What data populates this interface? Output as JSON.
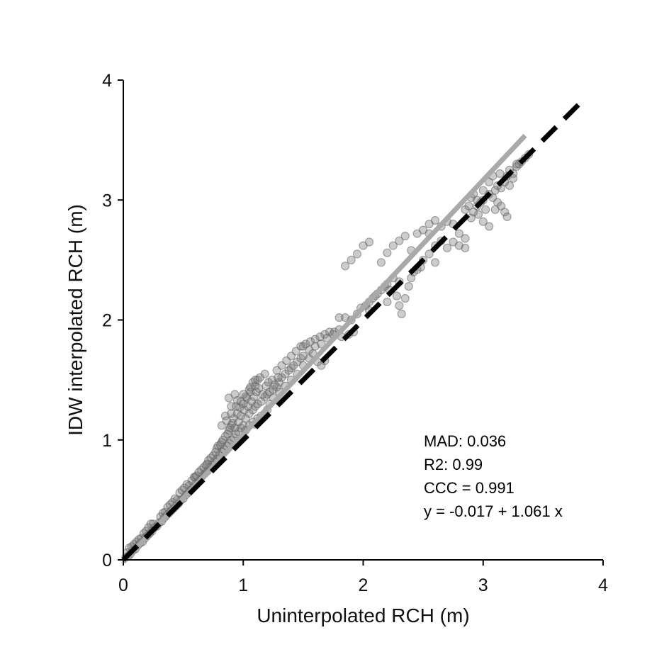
{
  "chart_data": {
    "type": "scatter",
    "title": "",
    "xlabel": "Uninterpolated RCH (m)",
    "ylabel": "IDW interpolated RCH (m)",
    "xlim": [
      0,
      4
    ],
    "ylim": [
      0,
      4
    ],
    "x_ticks": [
      0,
      1,
      2,
      3,
      4
    ],
    "y_ticks": [
      0,
      1,
      2,
      3,
      4
    ],
    "x_tick_labels": [
      "0",
      "1",
      "2",
      "3",
      "4"
    ],
    "y_tick_labels": [
      "0",
      "1",
      "2",
      "3",
      "4"
    ],
    "grid": false,
    "legend": "none",
    "colors": {
      "points_fill": "#7a7a7a",
      "points_stroke": "#5a5a5a",
      "fit_line": "#a9a9a9",
      "one_to_one_line": "#000000",
      "axis": "#000000"
    },
    "annotations": [
      "MAD: 0.036",
      "R2: 0.99",
      "CCC =  0.991",
      "y =  -0.017 + 1.061 x"
    ],
    "fit_line": {
      "intercept": -0.017,
      "slope": 1.061,
      "x_range": [
        0,
        3.35
      ]
    },
    "one_to_one_line": {
      "x_range": [
        0,
        3.85
      ]
    },
    "series": [
      {
        "points": [
          [
            0.02,
            0.02
          ],
          [
            0.04,
            0.03
          ],
          [
            0.06,
            0.05
          ],
          [
            0.08,
            0.08
          ],
          [
            0.1,
            0.09
          ],
          [
            0.12,
            0.12
          ],
          [
            0.14,
            0.14
          ],
          [
            0.16,
            0.15
          ],
          [
            0.18,
            0.18
          ],
          [
            0.2,
            0.2
          ],
          [
            0.22,
            0.22
          ],
          [
            0.24,
            0.24
          ],
          [
            0.26,
            0.27
          ],
          [
            0.28,
            0.28
          ],
          [
            0.3,
            0.31
          ],
          [
            0.32,
            0.32
          ],
          [
            0.34,
            0.35
          ],
          [
            0.36,
            0.37
          ],
          [
            0.38,
            0.39
          ],
          [
            0.4,
            0.41
          ],
          [
            0.42,
            0.43
          ],
          [
            0.44,
            0.45
          ],
          [
            0.46,
            0.47
          ],
          [
            0.48,
            0.5
          ],
          [
            0.5,
            0.51
          ],
          [
            0.52,
            0.54
          ],
          [
            0.54,
            0.56
          ],
          [
            0.56,
            0.58
          ],
          [
            0.58,
            0.6
          ],
          [
            0.6,
            0.63
          ],
          [
            0.62,
            0.65
          ],
          [
            0.64,
            0.67
          ],
          [
            0.66,
            0.7
          ],
          [
            0.68,
            0.72
          ],
          [
            0.7,
            0.74
          ],
          [
            0.72,
            0.77
          ],
          [
            0.74,
            0.79
          ],
          [
            0.76,
            0.82
          ],
          [
            0.78,
            0.84
          ],
          [
            0.8,
            0.87
          ],
          [
            0.82,
            0.9
          ],
          [
            0.84,
            0.92
          ],
          [
            0.86,
            0.95
          ],
          [
            0.88,
            0.97
          ],
          [
            0.9,
            1.0
          ],
          [
            0.92,
            1.02
          ],
          [
            0.94,
            1.05
          ],
          [
            0.96,
            1.07
          ],
          [
            0.98,
            1.1
          ],
          [
            1.0,
            1.12
          ],
          [
            0.15,
            0.18
          ],
          [
            0.25,
            0.3
          ],
          [
            0.35,
            0.4
          ],
          [
            0.45,
            0.5
          ],
          [
            0.55,
            0.62
          ],
          [
            0.6,
            0.69
          ],
          [
            0.65,
            0.75
          ],
          [
            0.7,
            0.8
          ],
          [
            0.75,
            0.87
          ],
          [
            0.78,
            0.93
          ],
          [
            0.82,
            0.98
          ],
          [
            0.85,
            1.03
          ],
          [
            0.88,
            1.08
          ],
          [
            0.9,
            1.12
          ],
          [
            0.92,
            1.18
          ],
          [
            0.95,
            1.22
          ],
          [
            0.97,
            1.27
          ],
          [
            1.0,
            1.3
          ],
          [
            1.03,
            1.35
          ],
          [
            1.06,
            1.4
          ],
          [
            0.85,
            1.2
          ],
          [
            0.9,
            1.28
          ],
          [
            0.95,
            1.33
          ],
          [
            1.0,
            1.38
          ],
          [
            1.05,
            1.42
          ],
          [
            1.1,
            1.45
          ],
          [
            0.88,
            1.35
          ],
          [
            0.93,
            1.38
          ],
          [
            1.08,
            1.48
          ],
          [
            1.12,
            1.5
          ],
          [
            1.02,
            1.18
          ],
          [
            1.05,
            1.22
          ],
          [
            1.08,
            1.25
          ],
          [
            1.1,
            1.28
          ],
          [
            1.12,
            1.3
          ],
          [
            1.15,
            1.32
          ],
          [
            1.18,
            1.36
          ],
          [
            1.2,
            1.38
          ],
          [
            1.22,
            1.4
          ],
          [
            1.25,
            1.42
          ],
          [
            1.02,
            1.08
          ],
          [
            1.05,
            1.12
          ],
          [
            1.08,
            1.15
          ],
          [
            1.1,
            1.13
          ],
          [
            1.12,
            1.18
          ],
          [
            1.15,
            1.2
          ],
          [
            1.18,
            1.22
          ],
          [
            1.2,
            1.25
          ],
          [
            1.22,
            1.3
          ],
          [
            1.25,
            1.35
          ],
          [
            1.28,
            1.44
          ],
          [
            1.3,
            1.48
          ],
          [
            1.32,
            1.52
          ],
          [
            1.35,
            1.55
          ],
          [
            1.38,
            1.58
          ],
          [
            1.4,
            1.6
          ],
          [
            1.42,
            1.62
          ],
          [
            1.45,
            1.65
          ],
          [
            1.48,
            1.68
          ],
          [
            1.5,
            1.7
          ],
          [
            1.28,
            1.58
          ],
          [
            1.32,
            1.62
          ],
          [
            1.36,
            1.66
          ],
          [
            1.4,
            1.7
          ],
          [
            1.44,
            1.74
          ],
          [
            1.48,
            1.78
          ],
          [
            1.52,
            1.8
          ],
          [
            1.56,
            1.82
          ],
          [
            1.6,
            1.84
          ],
          [
            1.64,
            1.86
          ],
          [
            1.68,
            1.88
          ],
          [
            1.72,
            1.9
          ],
          [
            1.76,
            1.9
          ],
          [
            1.8,
            1.92
          ],
          [
            1.55,
            1.75
          ],
          [
            1.6,
            1.78
          ],
          [
            1.65,
            1.8
          ],
          [
            1.7,
            1.85
          ],
          [
            1.75,
            1.88
          ],
          [
            1.62,
            1.65
          ],
          [
            1.3,
            1.4
          ],
          [
            1.35,
            1.45
          ],
          [
            1.4,
            1.5
          ],
          [
            1.45,
            1.55
          ],
          [
            1.5,
            1.62
          ],
          [
            1.55,
            1.68
          ],
          [
            1.65,
            1.62
          ],
          [
            1.68,
            1.66
          ],
          [
            1.5,
            1.78
          ],
          [
            1.58,
            1.72
          ],
          [
            1.8,
            2.02
          ],
          [
            1.85,
            2.02
          ],
          [
            1.88,
            1.88
          ],
          [
            1.92,
            1.9
          ],
          [
            1.95,
            2.05
          ],
          [
            1.98,
            2.1
          ],
          [
            2.02,
            2.12
          ],
          [
            2.05,
            2.15
          ],
          [
            1.9,
            2.0
          ],
          [
            1.82,
            1.86
          ],
          [
            2.08,
            2.18
          ],
          [
            2.1,
            2.2
          ],
          [
            2.12,
            2.22
          ],
          [
            2.15,
            2.25
          ],
          [
            2.18,
            2.28
          ],
          [
            2.2,
            2.3
          ],
          [
            2.22,
            2.25
          ],
          [
            2.25,
            2.35
          ],
          [
            2.28,
            2.2
          ],
          [
            2.05,
            2.08
          ],
          [
            2.3,
            2.12
          ],
          [
            2.32,
            2.05
          ],
          [
            2.35,
            2.18
          ],
          [
            2.38,
            2.28
          ],
          [
            2.4,
            2.35
          ],
          [
            2.42,
            2.4
          ],
          [
            2.45,
            2.42
          ],
          [
            2.48,
            2.44
          ],
          [
            2.3,
            2.32
          ],
          [
            2.2,
            2.15
          ],
          [
            1.85,
            2.45
          ],
          [
            1.9,
            2.5
          ],
          [
            1.95,
            2.55
          ],
          [
            2.0,
            2.62
          ],
          [
            2.05,
            2.65
          ],
          [
            2.15,
            2.48
          ],
          [
            2.2,
            2.56
          ],
          [
            2.25,
            2.62
          ],
          [
            2.3,
            2.66
          ],
          [
            2.35,
            2.7
          ],
          [
            2.4,
            2.58
          ],
          [
            2.45,
            2.72
          ],
          [
            2.5,
            2.75
          ],
          [
            2.55,
            2.8
          ],
          [
            2.6,
            2.83
          ],
          [
            2.65,
            2.78
          ],
          [
            2.7,
            2.82
          ],
          [
            2.75,
            2.8
          ],
          [
            2.8,
            2.72
          ],
          [
            2.85,
            2.68
          ],
          [
            2.55,
            2.72
          ],
          [
            2.6,
            2.62
          ],
          [
            2.65,
            2.66
          ],
          [
            2.7,
            2.6
          ],
          [
            2.75,
            2.65
          ],
          [
            2.8,
            2.62
          ],
          [
            2.85,
            2.6
          ],
          [
            2.5,
            2.5
          ],
          [
            2.55,
            2.55
          ],
          [
            2.6,
            2.48
          ],
          [
            2.9,
            2.85
          ],
          [
            2.92,
            2.9
          ],
          [
            2.95,
            2.95
          ],
          [
            2.98,
            2.98
          ],
          [
            3.0,
            3.0
          ],
          [
            3.02,
            2.92
          ],
          [
            3.05,
            3.05
          ],
          [
            3.08,
            3.02
          ],
          [
            3.1,
            2.92
          ],
          [
            3.12,
            2.98
          ],
          [
            3.15,
            3.1
          ],
          [
            3.18,
            3.15
          ],
          [
            3.2,
            3.2
          ],
          [
            3.22,
            3.25
          ],
          [
            3.25,
            3.22
          ],
          [
            3.28,
            3.28
          ],
          [
            3.3,
            3.3
          ],
          [
            3.32,
            3.32
          ],
          [
            3.35,
            3.35
          ],
          [
            3.38,
            3.38
          ],
          [
            3.05,
            3.15
          ],
          [
            3.08,
            3.2
          ],
          [
            3.1,
            3.08
          ],
          [
            3.12,
            3.12
          ],
          [
            3.15,
            2.95
          ],
          [
            3.18,
            2.9
          ],
          [
            3.2,
            2.86
          ],
          [
            3.05,
            2.78
          ],
          [
            3.22,
            3.12
          ],
          [
            3.25,
            3.18
          ],
          [
            2.9,
            3.02
          ],
          [
            2.95,
            3.0
          ],
          [
            3.0,
            3.08
          ],
          [
            2.88,
            2.95
          ],
          [
            2.85,
            2.92
          ],
          [
            2.92,
            3.05
          ],
          [
            3.0,
            2.82
          ],
          [
            2.96,
            2.88
          ],
          [
            3.14,
            3.22
          ],
          [
            3.28,
            3.3
          ],
          [
            0.03,
            0.06
          ],
          [
            0.05,
            0.1
          ],
          [
            0.07,
            0.11
          ],
          [
            0.09,
            0.13
          ],
          [
            0.11,
            0.15
          ],
          [
            0.13,
            0.17
          ],
          [
            0.17,
            0.22
          ],
          [
            0.19,
            0.24
          ],
          [
            0.21,
            0.27
          ],
          [
            0.23,
            0.3
          ],
          [
            0.31,
            0.36
          ],
          [
            0.33,
            0.39
          ],
          [
            0.37,
            0.44
          ],
          [
            0.39,
            0.46
          ],
          [
            0.41,
            0.48
          ],
          [
            0.43,
            0.51
          ],
          [
            0.47,
            0.56
          ],
          [
            0.49,
            0.58
          ],
          [
            0.51,
            0.6
          ],
          [
            0.53,
            0.63
          ],
          [
            0.57,
            0.66
          ],
          [
            0.59,
            0.69
          ],
          [
            0.61,
            0.7
          ],
          [
            0.63,
            0.73
          ],
          [
            0.67,
            0.77
          ],
          [
            0.69,
            0.79
          ],
          [
            0.71,
            0.83
          ],
          [
            0.73,
            0.85
          ],
          [
            0.77,
            0.9
          ],
          [
            0.79,
            0.95
          ],
          [
            0.81,
            0.96
          ],
          [
            0.83,
            1.0
          ],
          [
            0.87,
            1.05
          ],
          [
            0.89,
            1.1
          ],
          [
            0.91,
            1.14
          ],
          [
            0.93,
            1.1
          ],
          [
            0.96,
            1.15
          ],
          [
            0.98,
            1.2
          ],
          [
            1.01,
            1.25
          ],
          [
            1.04,
            1.28
          ],
          [
            1.07,
            1.32
          ],
          [
            1.09,
            1.36
          ],
          [
            1.11,
            1.4
          ],
          [
            1.13,
            1.43
          ],
          [
            1.16,
            1.38
          ],
          [
            1.19,
            1.45
          ],
          [
            1.21,
            1.48
          ],
          [
            1.24,
            1.5
          ],
          [
            1.26,
            1.46
          ],
          [
            1.29,
            1.52
          ],
          [
            0.82,
            1.12
          ],
          [
            0.86,
            1.16
          ],
          [
            0.9,
            1.22
          ],
          [
            0.94,
            1.28
          ],
          [
            0.98,
            1.32
          ],
          [
            1.02,
            1.36
          ],
          [
            1.06,
            1.44
          ],
          [
            1.1,
            1.5
          ],
          [
            1.14,
            1.52
          ],
          [
            1.18,
            1.55
          ]
        ]
      }
    ]
  }
}
